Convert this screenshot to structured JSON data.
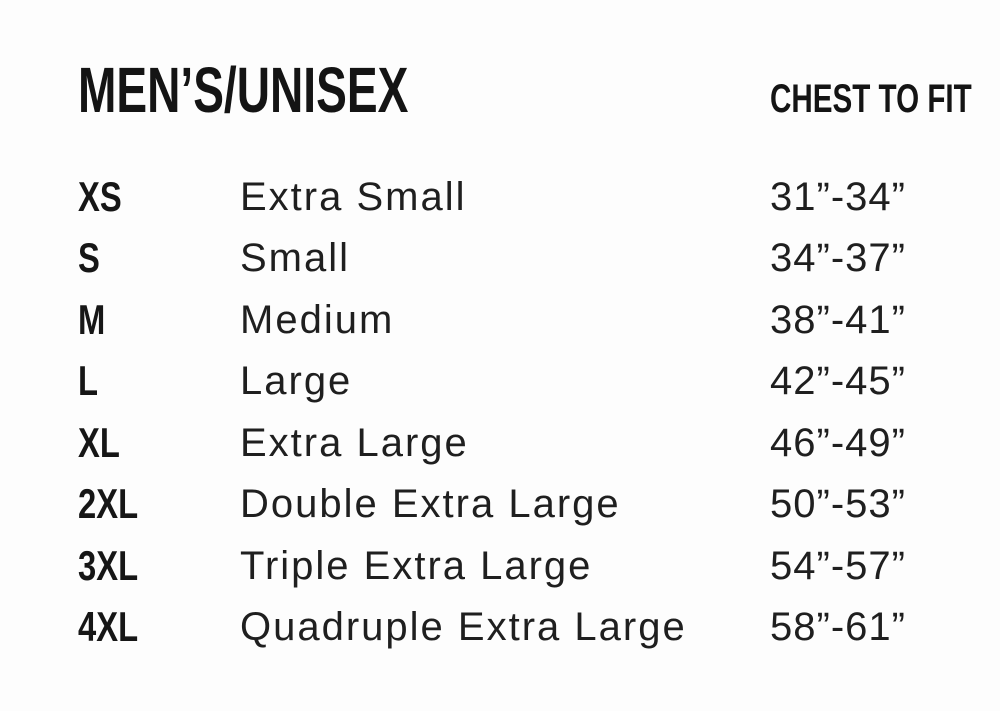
{
  "header": {
    "title": "MEN’S/UNISEX",
    "chest_to_fit_label": "CHEST TO FIT"
  },
  "size_table": {
    "rows": [
      {
        "code": "XS",
        "name": "Extra Small",
        "chest": "31”-34”"
      },
      {
        "code": "S",
        "name": "Small",
        "chest": "34”-37”"
      },
      {
        "code": "M",
        "name": "Medium",
        "chest": "38”-41”"
      },
      {
        "code": "L",
        "name": "Large",
        "chest": "42”-45”"
      },
      {
        "code": "XL",
        "name": "Extra Large",
        "chest": "46”-49”"
      },
      {
        "code": "2XL",
        "name": "Double Extra Large",
        "chest": "50”-53”"
      },
      {
        "code": "3XL",
        "name": "Triple Extra Large",
        "chest": "54”-57”"
      },
      {
        "code": "4XL",
        "name": "Quadruple Extra Large",
        "chest": "58”-61”"
      }
    ]
  },
  "colors": {
    "text_primary": "#141414",
    "text_secondary": "#1f1f1f",
    "background": "#fdfdfd"
  }
}
